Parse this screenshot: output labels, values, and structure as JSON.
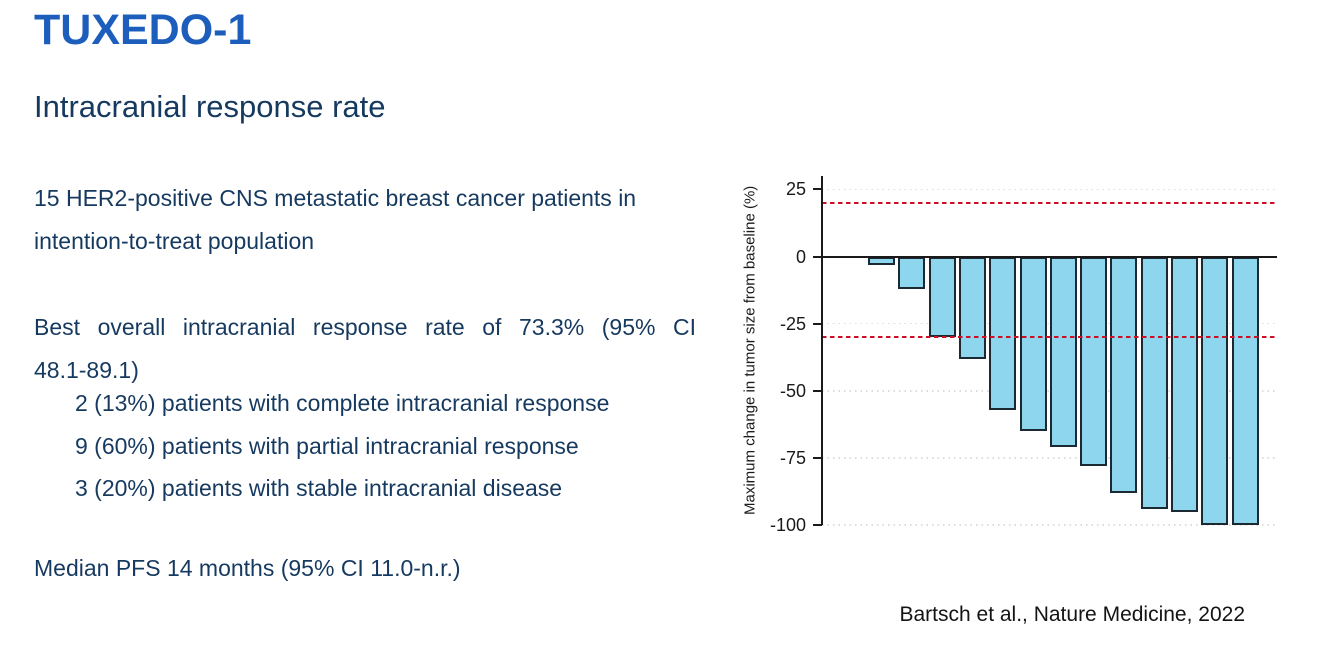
{
  "slide": {
    "title": "TUXEDO-1",
    "subtitle": "Intracranial response rate",
    "body": {
      "itt_line1": "15 HER2-positive CNS metastatic breast cancer patients in",
      "itt_line2": "intention-to-treat population",
      "orr_line1": "Best overall intracranial response rate of 73.3% (95% CI",
      "orr_line2": "48.1-89.1)",
      "list": [
        "2 (13%) patients with complete intracranial response",
        "9 (60%) patients with partial intracranial response",
        "3 (20%) patients with stable intracranial disease"
      ],
      "median_pfs": "Median PFS 14 months (95% CI 11.0-n.r.)"
    },
    "citation": "Bartsch et al., Nature Medicine, 2022"
  },
  "colors": {
    "title_blue": "#1d5ebd",
    "body_navy": "#16395f",
    "bar_fill": "#8ed6ee",
    "bar_border": "#1b2a32",
    "reference_line_red": "#cb1126",
    "axis_black": "#1a1a1a",
    "grid_gray": "#dcdcdc"
  },
  "chart_data": {
    "type": "bar",
    "title": "",
    "xlabel": "",
    "ylabel": "Maximum change in tumor size from baseline (%)",
    "values": [
      -3,
      -12,
      -30,
      -38,
      -57,
      -65,
      -71,
      -78,
      -88,
      -94,
      -95,
      -100,
      -100
    ],
    "ylim": [
      -100,
      30
    ],
    "yticks": [
      25,
      0,
      -25,
      -50,
      -75,
      -100
    ],
    "gridlines": [
      25,
      -25,
      -50,
      -75,
      -100
    ],
    "reference_lines": [
      20,
      -30
    ],
    "grid": "dotted",
    "legend": "none"
  }
}
